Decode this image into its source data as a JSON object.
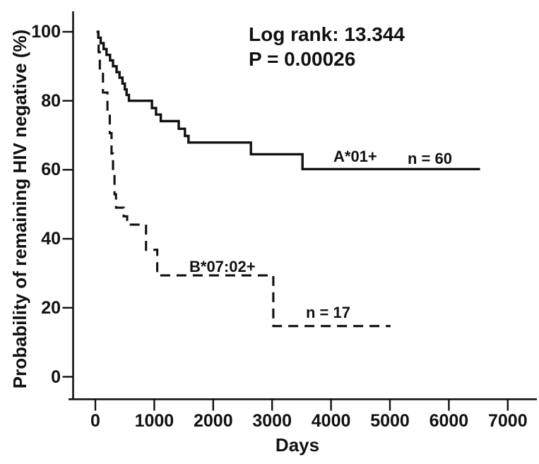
{
  "chart_data": {
    "type": "line",
    "variant": "kaplan_meier_step",
    "title": "",
    "xlabel": "Days",
    "ylabel": "Probability of remaining HIV negative (%)",
    "xlim": [
      0,
      7000
    ],
    "ylim": [
      0,
      100
    ],
    "x_ticks": [
      0,
      1000,
      2000,
      3000,
      4000,
      5000,
      6000,
      7000
    ],
    "y_ticks": [
      100,
      80,
      60,
      40,
      20,
      0
    ],
    "grid": false,
    "background_color": "#ffffff",
    "line_color": "#111111",
    "legend_position": "inline-labels",
    "annotations": {
      "log_rank": "Log rank: 13.344",
      "p_value": "P = 0.00026"
    },
    "series": [
      {
        "name": "A*01+",
        "label": "A*01+",
        "n": 60,
        "n_label": "n = 60",
        "line_style": "solid",
        "points_days_percent": [
          [
            20,
            100
          ],
          [
            50,
            98.3
          ],
          [
            90,
            96.7
          ],
          [
            140,
            95
          ],
          [
            190,
            93.3
          ],
          [
            250,
            91.7
          ],
          [
            300,
            90
          ],
          [
            360,
            88.3
          ],
          [
            410,
            86.7
          ],
          [
            460,
            85
          ],
          [
            500,
            83.3
          ],
          [
            530,
            81.7
          ],
          [
            570,
            80
          ],
          [
            960,
            77.9
          ],
          [
            1030,
            76
          ],
          [
            1110,
            74.1
          ],
          [
            1415,
            71.9
          ],
          [
            1520,
            69.8
          ],
          [
            1580,
            67.9
          ],
          [
            2640,
            64.5
          ],
          [
            3515,
            60.2
          ]
        ],
        "end_day": 6530
      },
      {
        "name": "B*07:02+",
        "label": "B*07:02+",
        "n": 17,
        "n_label": "n = 17",
        "line_style": "dashed",
        "points_days_percent": [
          [
            40,
            96
          ],
          [
            55,
            94.1
          ],
          [
            75,
            88.2
          ],
          [
            130,
            82.4
          ],
          [
            205,
            76.5
          ],
          [
            245,
            70.6
          ],
          [
            275,
            64.7
          ],
          [
            300,
            58.8
          ],
          [
            325,
            52.9
          ],
          [
            350,
            49
          ],
          [
            480,
            46.5
          ],
          [
            540,
            44.1
          ],
          [
            860,
            36.8
          ],
          [
            1050,
            29.4
          ],
          [
            3020,
            14.7
          ]
        ],
        "end_day": 5010
      }
    ]
  }
}
